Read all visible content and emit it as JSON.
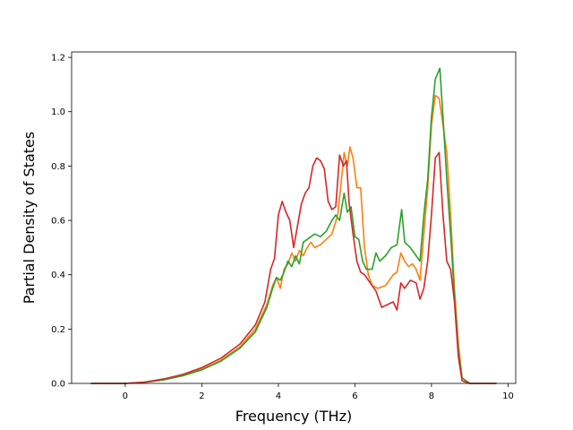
{
  "chart_data": {
    "type": "line",
    "title": "",
    "xlabel": "Frequency (THz)",
    "ylabel": "Partial Density of States",
    "xlim": [
      -1.4,
      10.2
    ],
    "ylim": [
      0.0,
      1.22
    ],
    "xticks": [
      0,
      2,
      4,
      6,
      8,
      10
    ],
    "yticks": [
      0.0,
      0.2,
      0.4,
      0.6,
      0.8,
      1.0,
      1.2
    ],
    "xtick_labels": [
      "0",
      "2",
      "4",
      "6",
      "8",
      "10"
    ],
    "ytick_labels": [
      "0.0",
      "0.2",
      "0.4",
      "0.6",
      "0.8",
      "1.0",
      "1.2"
    ],
    "grid": false,
    "series": [
      {
        "color": "#ff7f0e",
        "x": [
          -0.9,
          0.0,
          0.5,
          1.0,
          1.5,
          2.0,
          2.5,
          3.0,
          3.4,
          3.7,
          3.85,
          3.95,
          4.05,
          4.15,
          4.25,
          4.35,
          4.45,
          4.55,
          4.65,
          4.75,
          4.85,
          4.95,
          5.1,
          5.25,
          5.4,
          5.55,
          5.65,
          5.72,
          5.8,
          5.87,
          5.95,
          6.05,
          6.15,
          6.25,
          6.35,
          6.45,
          6.6,
          6.8,
          7.0,
          7.1,
          7.2,
          7.3,
          7.4,
          7.5,
          7.6,
          7.7,
          7.8,
          7.9,
          8.0,
          8.1,
          8.2,
          8.3,
          8.4,
          8.5,
          8.6,
          8.7,
          8.8,
          9.0,
          9.7
        ],
        "y": [
          0.0,
          0.0,
          0.004,
          0.014,
          0.03,
          0.052,
          0.085,
          0.135,
          0.2,
          0.29,
          0.36,
          0.39,
          0.35,
          0.42,
          0.44,
          0.48,
          0.45,
          0.49,
          0.47,
          0.5,
          0.52,
          0.5,
          0.51,
          0.53,
          0.55,
          0.62,
          0.75,
          0.85,
          0.8,
          0.87,
          0.83,
          0.72,
          0.72,
          0.5,
          0.4,
          0.36,
          0.35,
          0.36,
          0.4,
          0.41,
          0.48,
          0.45,
          0.43,
          0.44,
          0.42,
          0.38,
          0.55,
          0.72,
          0.95,
          1.06,
          1.05,
          0.95,
          0.85,
          0.62,
          0.35,
          0.15,
          0.02,
          0.0,
          0.0
        ]
      },
      {
        "color": "#2ca02c",
        "x": [
          -0.9,
          0.0,
          0.5,
          1.0,
          1.5,
          2.0,
          2.5,
          3.0,
          3.4,
          3.7,
          3.85,
          3.95,
          4.05,
          4.15,
          4.25,
          4.35,
          4.45,
          4.55,
          4.65,
          4.75,
          4.85,
          4.95,
          5.1,
          5.25,
          5.4,
          5.5,
          5.6,
          5.72,
          5.8,
          5.9,
          6.0,
          6.1,
          6.2,
          6.3,
          6.45,
          6.55,
          6.65,
          6.8,
          6.95,
          7.1,
          7.22,
          7.3,
          7.45,
          7.6,
          7.7,
          7.8,
          7.9,
          8.0,
          8.1,
          8.22,
          8.3,
          8.4,
          8.5,
          8.6,
          8.7,
          8.8,
          9.0,
          9.7
        ],
        "y": [
          0.0,
          0.0,
          0.004,
          0.013,
          0.028,
          0.05,
          0.082,
          0.13,
          0.19,
          0.28,
          0.35,
          0.39,
          0.38,
          0.41,
          0.45,
          0.43,
          0.47,
          0.44,
          0.52,
          0.53,
          0.54,
          0.55,
          0.54,
          0.56,
          0.6,
          0.62,
          0.6,
          0.7,
          0.63,
          0.65,
          0.54,
          0.53,
          0.45,
          0.42,
          0.42,
          0.48,
          0.45,
          0.47,
          0.5,
          0.51,
          0.64,
          0.52,
          0.5,
          0.47,
          0.45,
          0.62,
          0.75,
          0.98,
          1.12,
          1.16,
          0.98,
          0.75,
          0.55,
          0.32,
          0.12,
          0.02,
          0.0,
          0.0
        ]
      },
      {
        "color": "#d62728",
        "x": [
          -0.9,
          0.0,
          0.5,
          1.0,
          1.5,
          2.0,
          2.5,
          3.0,
          3.4,
          3.65,
          3.8,
          3.9,
          4.0,
          4.1,
          4.2,
          4.3,
          4.4,
          4.5,
          4.6,
          4.7,
          4.8,
          4.9,
          5.0,
          5.1,
          5.2,
          5.3,
          5.4,
          5.5,
          5.6,
          5.7,
          5.78,
          5.85,
          5.95,
          6.05,
          6.15,
          6.25,
          6.4,
          6.55,
          6.7,
          6.85,
          7.0,
          7.1,
          7.2,
          7.3,
          7.45,
          7.6,
          7.7,
          7.8,
          7.9,
          8.0,
          8.1,
          8.2,
          8.3,
          8.4,
          8.5,
          8.6,
          8.7,
          8.8,
          9.0,
          9.7
        ],
        "y": [
          0.0,
          0.0,
          0.005,
          0.016,
          0.033,
          0.058,
          0.093,
          0.145,
          0.215,
          0.3,
          0.42,
          0.46,
          0.62,
          0.67,
          0.63,
          0.6,
          0.5,
          0.58,
          0.66,
          0.7,
          0.72,
          0.8,
          0.83,
          0.82,
          0.79,
          0.67,
          0.64,
          0.65,
          0.84,
          0.8,
          0.82,
          0.66,
          0.55,
          0.45,
          0.41,
          0.4,
          0.37,
          0.34,
          0.28,
          0.29,
          0.3,
          0.27,
          0.37,
          0.35,
          0.38,
          0.37,
          0.31,
          0.35,
          0.45,
          0.62,
          0.83,
          0.85,
          0.62,
          0.45,
          0.42,
          0.3,
          0.1,
          0.01,
          0.0,
          0.0
        ]
      }
    ]
  }
}
